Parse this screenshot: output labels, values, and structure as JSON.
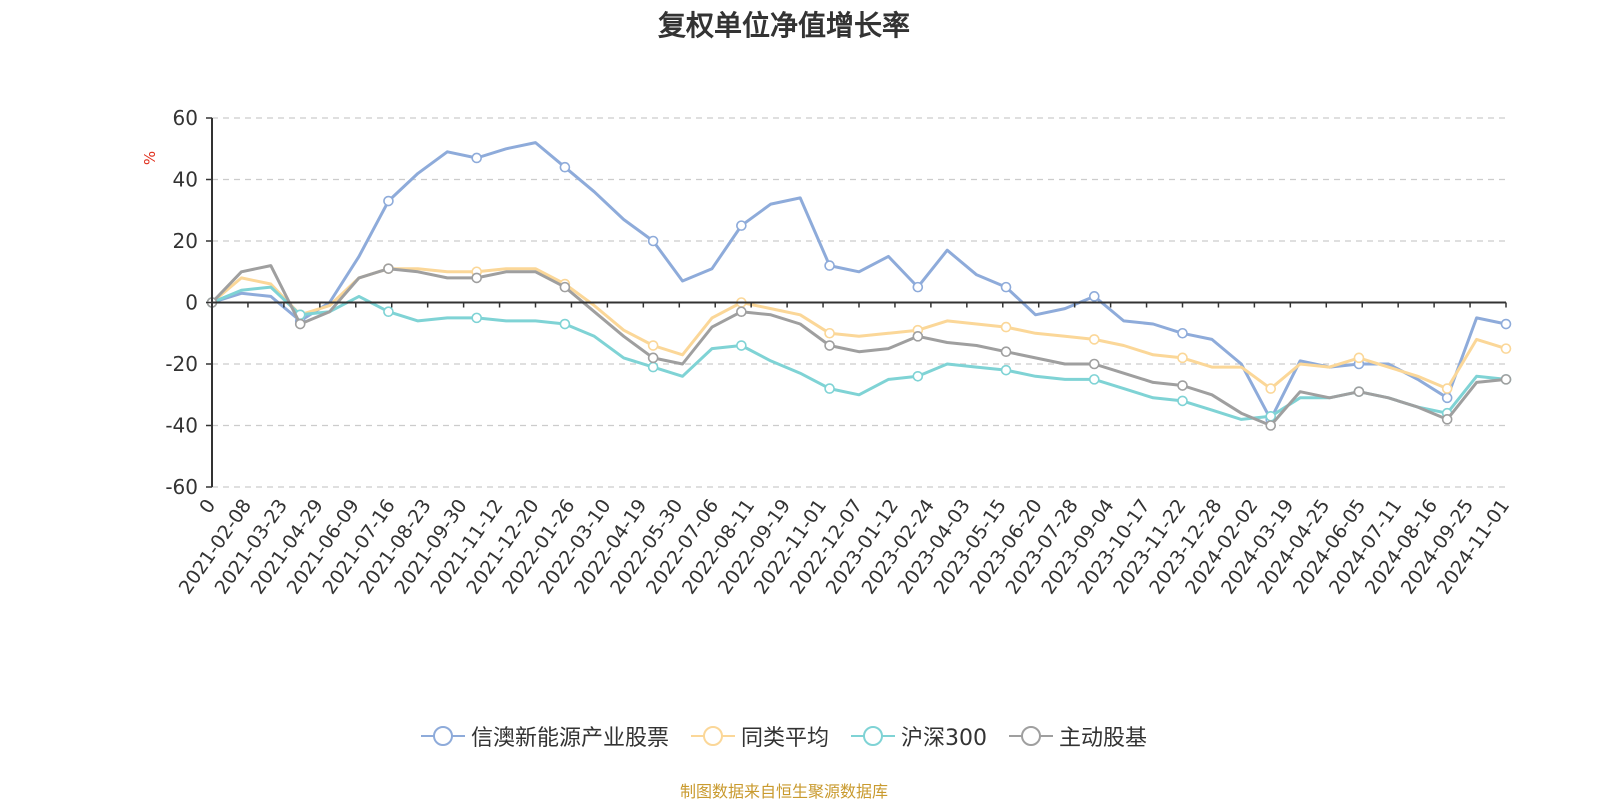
{
  "chart_data": {
    "type": "line",
    "title": "复权单位净值增长率",
    "ylabel": "%",
    "ylim": [
      -60,
      60
    ],
    "yticks": [
      60,
      40,
      20,
      0,
      -20,
      -40,
      -60
    ],
    "xticks": [
      "0",
      "2021-02-08",
      "2021-03-23",
      "2021-04-29",
      "2021-06-09",
      "2021-07-16",
      "2021-08-23",
      "2021-09-30",
      "2021-11-12",
      "2021-12-20",
      "2022-01-26",
      "2022-03-10",
      "2022-04-19",
      "2022-05-30",
      "2022-07-06",
      "2022-08-11",
      "2022-09-19",
      "2022-11-01",
      "2022-12-07",
      "2023-01-12",
      "2023-02-24",
      "2023-04-03",
      "2023-05-15",
      "2023-06-20",
      "2023-07-28",
      "2023-09-04",
      "2023-10-17",
      "2023-11-22",
      "2023-12-28",
      "2024-02-02",
      "2024-03-19",
      "2024-04-25",
      "2024-06-05",
      "2024-07-11",
      "2024-08-16",
      "2024-09-25",
      "2024-11-01"
    ],
    "grid": "horizontal-dashed",
    "legend_position": "bottom",
    "series": [
      {
        "name": "信澳新能源产业股票",
        "color": "#8eabda",
        "values": [
          0,
          3,
          2,
          -6,
          0,
          15,
          33,
          42,
          49,
          47,
          50,
          52,
          44,
          36,
          27,
          20,
          7,
          11,
          25,
          32,
          34,
          12,
          10,
          15,
          5,
          17,
          9,
          5,
          -4,
          -2,
          2,
          -6,
          -7,
          -10,
          -12,
          -20,
          -38,
          -19,
          -21,
          -20,
          -20,
          -25,
          -31,
          -5,
          -7
        ]
      },
      {
        "name": "同类平均",
        "color": "#fbd798",
        "values": [
          0,
          8,
          6,
          -4,
          -1,
          8,
          11,
          11,
          10,
          10,
          11,
          11,
          6,
          -1,
          -9,
          -14,
          -17,
          -5,
          0,
          -2,
          -4,
          -10,
          -11,
          -10,
          -9,
          -6,
          -7,
          -8,
          -10,
          -11,
          -12,
          -14,
          -17,
          -18,
          -21,
          -21,
          -28,
          -20,
          -21,
          -18,
          -21,
          -24,
          -28,
          -12,
          -15
        ]
      },
      {
        "name": "沪深300",
        "color": "#7fd3d5",
        "values": [
          0,
          4,
          5,
          -4,
          -3,
          2,
          -3,
          -6,
          -5,
          -5,
          -6,
          -6,
          -7,
          -11,
          -18,
          -21,
          -24,
          -15,
          -14,
          -19,
          -23,
          -28,
          -30,
          -25,
          -24,
          -20,
          -21,
          -22,
          -24,
          -25,
          -25,
          -28,
          -31,
          -32,
          -35,
          -38,
          -37,
          -31,
          -31,
          -29,
          -31,
          -34,
          -36,
          -24,
          -25
        ]
      },
      {
        "name": "主动股基",
        "color": "#9f9f9f",
        "values": [
          0,
          10,
          12,
          -7,
          -3,
          8,
          11,
          10,
          8,
          8,
          10,
          10,
          5,
          -3,
          -11,
          -18,
          -20,
          -8,
          -3,
          -4,
          -7,
          -14,
          -16,
          -15,
          -11,
          -13,
          -14,
          -16,
          -18,
          -20,
          -20,
          -23,
          -26,
          -27,
          -30,
          -36,
          -40,
          -29,
          -31,
          -29,
          -31,
          -34,
          -38,
          -26,
          -25
        ]
      }
    ]
  },
  "source": {
    "text": "制图数据来自恒生聚源数据库",
    "color": "#c99a2e"
  },
  "colors": {
    "axis": "#333333",
    "grid": "#cccccc",
    "ylabel": "#e0301e",
    "marker_fill": "#ffffff"
  }
}
